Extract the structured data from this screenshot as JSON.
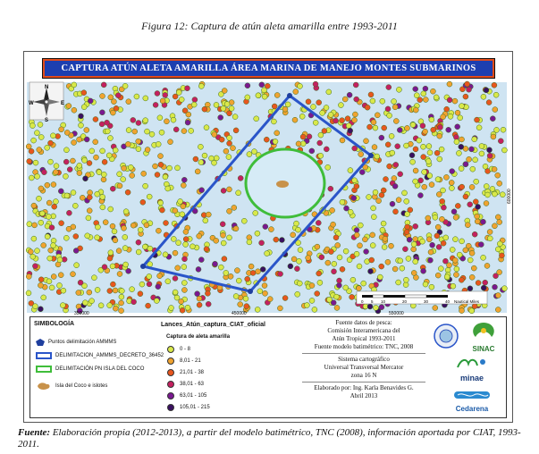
{
  "figure_caption": "Figura 12: Captura de atún aleta amarilla entre 1993-2011",
  "map": {
    "banner_title": "CAPTURA ATÚN ALETA AMARILLA ÁREA MARINA DE MANEJO MONTES SUBMARINOS",
    "compass": {
      "N": "N",
      "S": "S",
      "E": "E",
      "W": "W"
    },
    "x_ticks": [
      "350000",
      "450000",
      "550000"
    ],
    "y_tick": "600000",
    "scale_bar": {
      "labels": [
        "0",
        "5",
        "10",
        "20",
        "30",
        "40"
      ],
      "unit": "Nautical Miles"
    },
    "colors": {
      "ocean": "#cfe4f2",
      "boundary_amm": "#2a55c9",
      "pn_circle": "#3fbd3a",
      "banner_bg": "#1c3fb0"
    }
  },
  "legend": {
    "title": "SIMBOLOGÍA",
    "items": [
      {
        "label": "Puntos delimitación AMMMS",
        "icon": "pentagon-point-icon"
      },
      {
        "label": "DELIMITACION_AMMMS_DECRETO_36452",
        "icon": "blue-outline-rect-icon"
      },
      {
        "label": "DELIMITACIÓN PN ISLA DEL COCO",
        "icon": "green-outline-rect-icon"
      },
      {
        "label": "Isla del Coco e islotes",
        "icon": "island-shape-icon"
      }
    ]
  },
  "catch_legend": {
    "layer": "Lances_Atún_captura_CIAT_oficial",
    "subtitle": "Captura de aleta amarilla",
    "classes": [
      {
        "range": "0 - 8",
        "color": "#d9e84a"
      },
      {
        "range": "8,01 - 21",
        "color": "#f0a330"
      },
      {
        "range": "21,01 - 38",
        "color": "#e8561e"
      },
      {
        "range": "38,01 - 63",
        "color": "#c42060"
      },
      {
        "range": "63,01 - 105",
        "color": "#7a1890"
      },
      {
        "range": "105,01 - 215",
        "color": "#3a1060"
      }
    ]
  },
  "info": {
    "lines_1": [
      "Fuente datos de pesca:",
      "Comisión Interamericana del",
      "Atún Tropical 1993-2011",
      "Fuente modelo batimétrico: TNC, 2008"
    ],
    "lines_2": [
      "Sistema cartográfico",
      "Universal Transversal Mercator",
      "zona 16 N"
    ],
    "lines_3": [
      "Elaborado por: Ing. Karla Benavides G.",
      "Abril 2013"
    ]
  },
  "logos": {
    "sinac": "SINAC",
    "minae": "minae",
    "cedarena": "Cedarena"
  },
  "source_note": {
    "label": "Fuente:",
    "text": "Elaboración propia (2012-2013), a partir del modelo batimétrico, TNC (2008), información aportada por CIAT, 1993-2011."
  }
}
